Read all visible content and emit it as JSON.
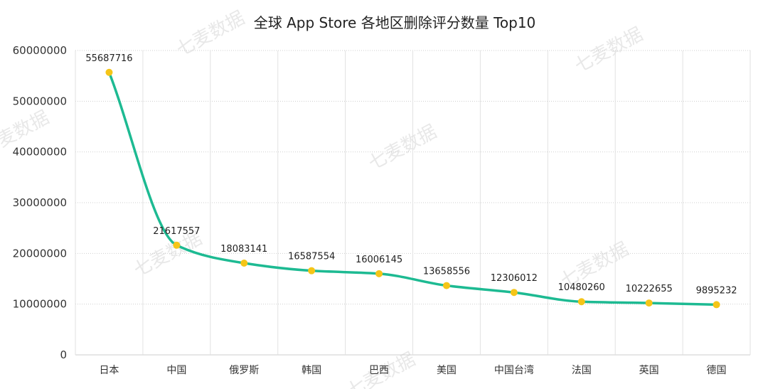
{
  "watermark": "七麦数据",
  "chart_data": {
    "type": "line",
    "title": "全球 App Store 各地区删除评分数量 Top10",
    "xlabel": "",
    "ylabel": "",
    "categories": [
      "日本",
      "中国",
      "俄罗斯",
      "韩国",
      "巴西",
      "美国",
      "中国台湾",
      "法国",
      "英国",
      "德国"
    ],
    "series": [
      {
        "name": "",
        "values": [
          55687716,
          21617557,
          18083141,
          16587554,
          16006145,
          13658556,
          12306012,
          10480260,
          10222655,
          9895232
        ]
      }
    ],
    "yticks": [
      "0",
      "10000000",
      "20000000",
      "30000000",
      "40000000",
      "50000000",
      "60000000"
    ],
    "ylim": [
      0,
      60000000
    ],
    "grid": true,
    "legend": "none",
    "line_color": "#1dba92",
    "marker_color": "#f5c518"
  }
}
